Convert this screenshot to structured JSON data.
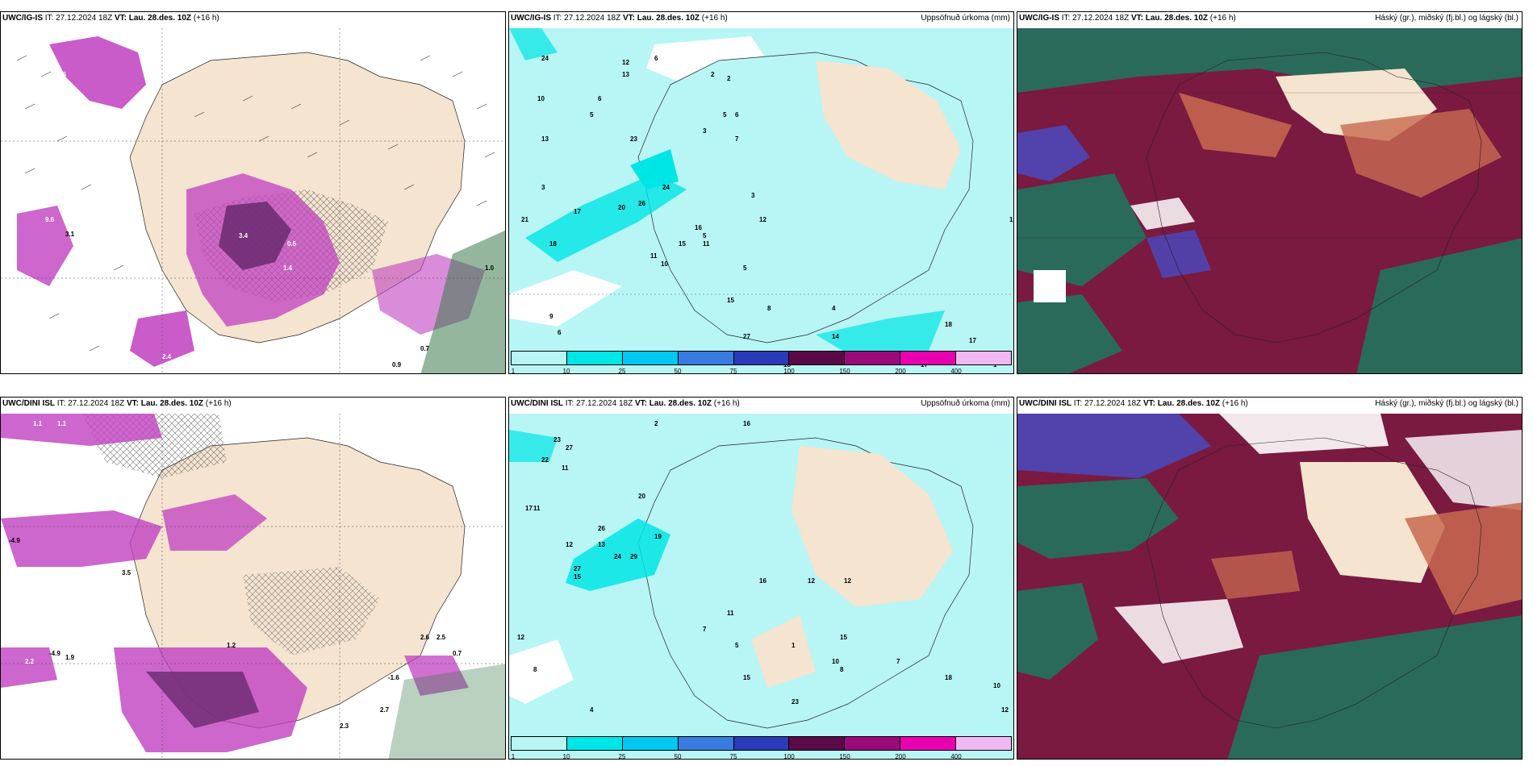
{
  "panels": [
    {
      "id": "top-left",
      "model": "UWC/IG-IS",
      "it_label": "IT:",
      "it_value": "27.12.2024 18Z",
      "vt_label": "VT:",
      "vt_value": "Lau. 28.des. 10Z",
      "lead": "(+16 h)",
      "right_title": "",
      "kind": "wind"
    },
    {
      "id": "top-middle",
      "model": "UWC/IG-IS",
      "it_label": "IT:",
      "it_value": "27.12.2024 18Z",
      "vt_label": "VT:",
      "vt_value": "Lau. 28.des. 10Z",
      "lead": "(+16 h)",
      "right_title": "Uppsöfnuð úrkoma (mm)",
      "kind": "precip"
    },
    {
      "id": "top-right",
      "model": "UWC/IG-IS",
      "it_label": "IT:",
      "it_value": "27.12.2024 18Z",
      "vt_label": "VT:",
      "vt_value": "Lau. 28.des. 10Z",
      "lead": "(+16 h)",
      "right_title": "Háský (gr.), miðský (fj.bl.) og lágský (bl.)",
      "kind": "cloud"
    },
    {
      "id": "bottom-left",
      "model": "UWC/DINI ISL",
      "it_label": "IT:",
      "it_value": "27.12.2024 18Z",
      "vt_label": "VT:",
      "vt_value": "Lau. 28.des. 10Z",
      "lead": "(+16 h)",
      "right_title": "",
      "kind": "wind"
    },
    {
      "id": "bottom-middle",
      "model": "UWC/DINI ISL",
      "it_label": "IT:",
      "it_value": "27.12.2024 18Z",
      "vt_label": "VT:",
      "vt_value": "Lau. 28.des. 10Z",
      "lead": "(+16 h)",
      "right_title": "Uppsöfnuð úrkoma (mm)",
      "kind": "precip"
    },
    {
      "id": "bottom-right",
      "model": "UWC/DINI ISL",
      "it_label": "IT:",
      "it_value": "27.12.2024 18Z",
      "vt_label": "VT:",
      "vt_value": "Lau. 28.des. 10Z",
      "lead": "(+16 h)",
      "right_title": "Háský (gr.), miðský (fj.bl.) og lágský (bl.)",
      "kind": "cloud"
    }
  ],
  "colorbar": {
    "labels": [
      "1",
      "10",
      "25",
      "50",
      "75",
      "100",
      "150",
      "200",
      "400"
    ],
    "colors": [
      "#b8f5f5",
      "#00e5e5",
      "#00c8f0",
      "#3a7be0",
      "#2a3ab8",
      "#5a0a46",
      "#9a0a7a",
      "#e800b0",
      "#f0b8f0"
    ]
  },
  "precip_numbers_top": [
    "24",
    "12",
    "13",
    "6",
    "2",
    "2",
    "10",
    "5",
    "6",
    "5",
    "7",
    "3",
    "6",
    "13",
    "23",
    "3",
    "17",
    "5",
    "3",
    "20",
    "26",
    "24",
    "21",
    "18",
    "16",
    "11",
    "15",
    "11",
    "10",
    "12",
    "5",
    "15",
    "8",
    "9",
    "6",
    "27",
    "14",
    "18",
    "17",
    "17",
    "11",
    "18",
    "1",
    "4",
    "1"
  ],
  "precip_numbers_bottom": [
    "2",
    "16",
    "27",
    "23",
    "22",
    "11",
    "17",
    "11",
    "20",
    "26",
    "19",
    "13",
    "12",
    "24",
    "29",
    "27",
    "15",
    "11",
    "7",
    "12",
    "16",
    "15",
    "12",
    "5",
    "4",
    "12",
    "8",
    "10",
    "8",
    "18",
    "23",
    "10",
    "12",
    "7",
    "1",
    "5",
    "4"
  ],
  "colors": {
    "land": "#f4e4d0",
    "ocean_precip": "#b8f5f5",
    "magenta": "#c040c0",
    "dark_purple": "#6a2a70",
    "green": "#3a7a4a",
    "cloud_red": "#7a1a40",
    "cloud_teal": "#2a6a5a",
    "cloud_blue": "#4a4ac0",
    "cloud_orange": "#c86a50"
  }
}
